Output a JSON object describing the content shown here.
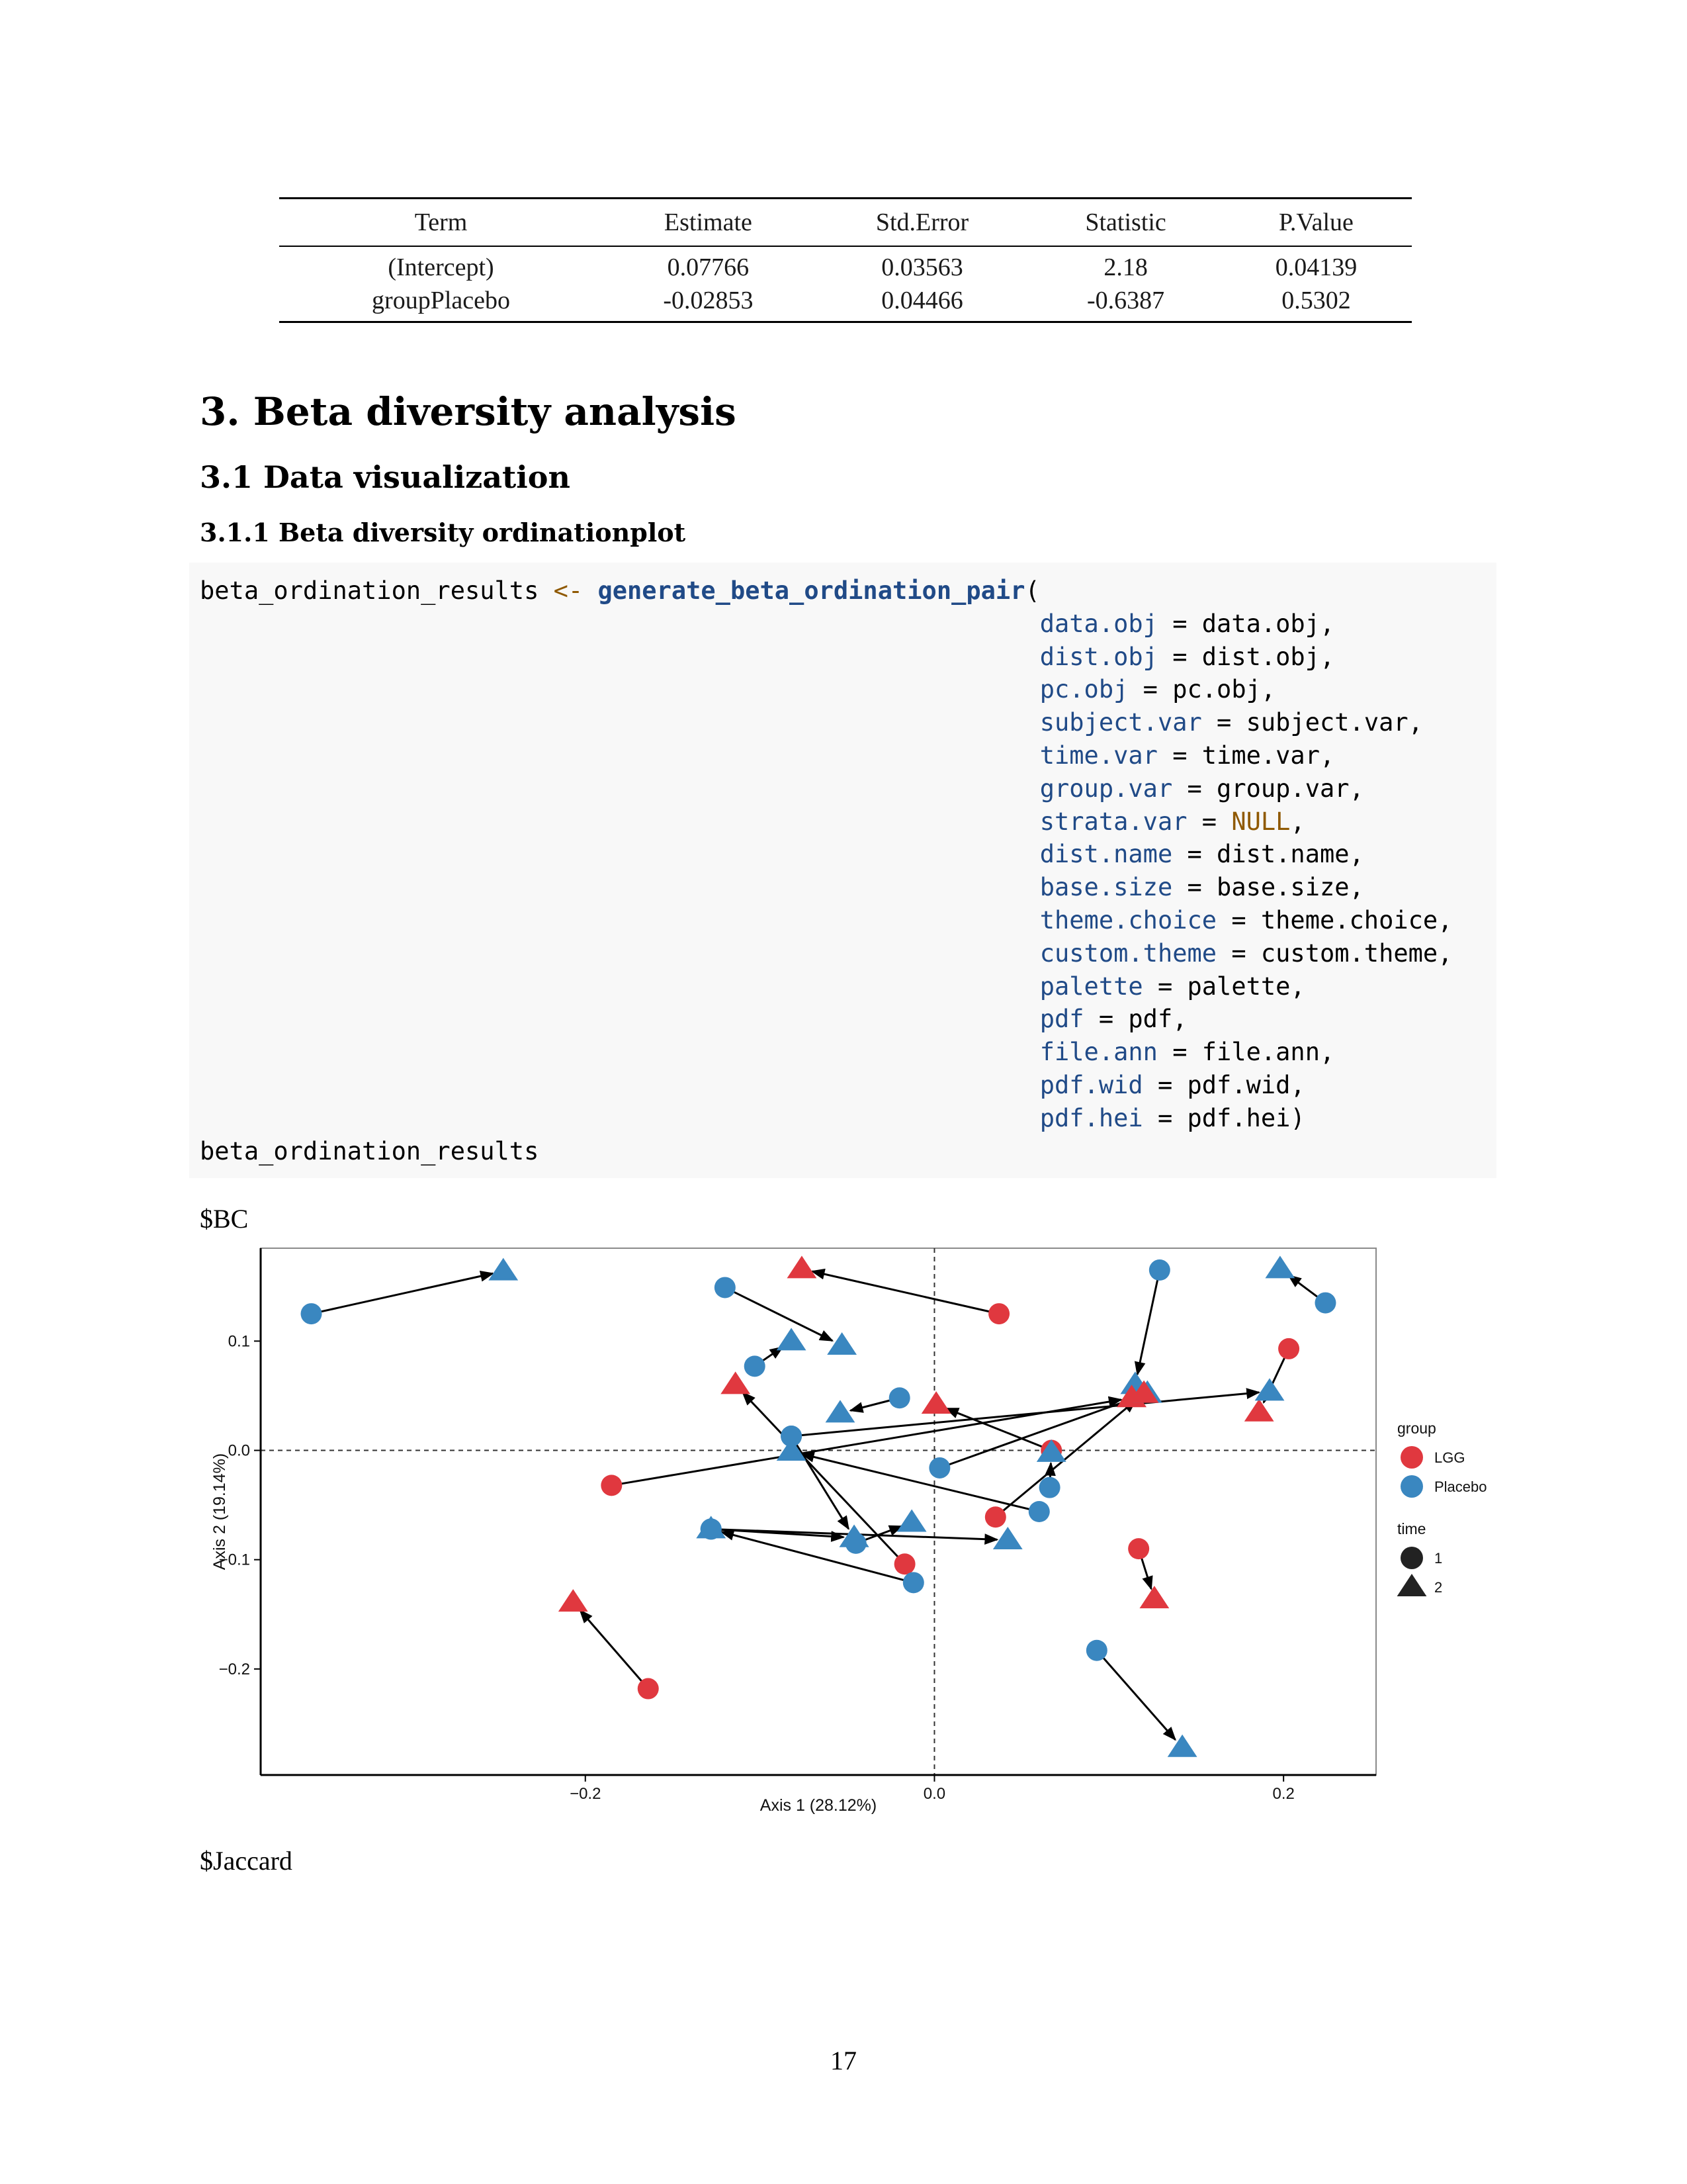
{
  "table": {
    "headers": [
      "Term",
      "Estimate",
      "Std.Error",
      "Statistic",
      "P.Value"
    ],
    "rows": [
      [
        "(Intercept)",
        "0.07766",
        "0.03563",
        "2.18",
        "0.04139"
      ],
      [
        "groupPlacebo",
        "-0.02853",
        "0.04466",
        "-0.6387",
        "0.5302"
      ]
    ]
  },
  "headings": {
    "section": "3.  Beta diversity analysis",
    "subsection": "3.1 Data visualization",
    "subsubsection": "3.1.1 Beta diversity ordinationplot"
  },
  "code": {
    "assign_target": "beta_ordination_results",
    "assign_op": "<-",
    "function": "generate_beta_ordination_pair",
    "args": [
      {
        "name": "data.obj",
        "value": "data.obj",
        "keyword": false
      },
      {
        "name": "dist.obj",
        "value": "dist.obj",
        "keyword": false
      },
      {
        "name": "pc.obj",
        "value": "pc.obj",
        "keyword": false
      },
      {
        "name": "subject.var",
        "value": "subject.var",
        "keyword": false
      },
      {
        "name": "time.var",
        "value": "time.var",
        "keyword": false
      },
      {
        "name": "group.var",
        "value": "group.var",
        "keyword": false
      },
      {
        "name": "strata.var",
        "value": "NULL",
        "keyword": true
      },
      {
        "name": "dist.name",
        "value": "dist.name",
        "keyword": false
      },
      {
        "name": "base.size",
        "value": "base.size",
        "keyword": false
      },
      {
        "name": "theme.choice",
        "value": "theme.choice",
        "keyword": false
      },
      {
        "name": "custom.theme",
        "value": "custom.theme",
        "keyword": false
      },
      {
        "name": "palette",
        "value": "palette",
        "keyword": false
      },
      {
        "name": "pdf",
        "value": "pdf",
        "keyword": false
      },
      {
        "name": "file.ann",
        "value": "file.ann",
        "keyword": false
      },
      {
        "name": "pdf.wid",
        "value": "pdf.wid",
        "keyword": false
      },
      {
        "name": "pdf.hei",
        "value": "pdf.hei",
        "keyword": false
      }
    ],
    "final_line": "beta_ordination_results"
  },
  "outputs": {
    "bc_label": "$BC",
    "jaccard_label": "$Jaccard"
  },
  "chart_data": {
    "type": "scatter",
    "xlabel": "Axis 1 (28.12%)",
    "ylabel": "Axis 2 (19.14%)",
    "xlim": [
      -0.386,
      0.253
    ],
    "ylim": [
      -0.297,
      0.185
    ],
    "xticks": [
      -0.2,
      0.0,
      0.2
    ],
    "yticks": [
      -0.2,
      -0.1,
      0.0,
      0.1
    ],
    "xtick_labels": [
      "−0.2",
      "0.0",
      "0.2"
    ],
    "ytick_labels": [
      "−0.2",
      "−0.1",
      "0.0",
      "0.1"
    ],
    "reference_lines": {
      "x": 0.0,
      "y": 0.0,
      "style": "dashed"
    },
    "grid": false,
    "legend_position": "right",
    "legend": {
      "group_title": "group",
      "groups": [
        {
          "name": "LGG",
          "color": "#e0383f"
        },
        {
          "name": "Placebo",
          "color": "#3a87c0"
        }
      ],
      "time_title": "time",
      "times": [
        {
          "name": "1",
          "shape": "circle"
        },
        {
          "name": "2",
          "shape": "triangle"
        }
      ]
    },
    "pairs": [
      {
        "group": "Placebo",
        "t1": [
          -0.357,
          0.125
        ],
        "t2": [
          -0.247,
          0.164
        ]
      },
      {
        "group": "LGG",
        "t1": [
          0.037,
          0.125
        ],
        "t2": [
          -0.076,
          0.166
        ]
      },
      {
        "group": "Placebo",
        "t1": [
          -0.12,
          0.149
        ],
        "t2": [
          -0.053,
          0.096
        ]
      },
      {
        "group": "Placebo",
        "t1": [
          0.129,
          0.165
        ],
        "t2": [
          0.115,
          0.06
        ]
      },
      {
        "group": "Placebo",
        "t1": [
          0.224,
          0.135
        ],
        "t2": [
          0.198,
          0.166
        ]
      },
      {
        "group": "LGG",
        "t1": [
          0.203,
          0.093
        ],
        "t2": [
          0.186,
          0.035
        ]
      },
      {
        "group": "Placebo",
        "t1": [
          -0.103,
          0.077
        ],
        "t2": [
          -0.082,
          0.1
        ]
      },
      {
        "group": "Placebo",
        "t1": [
          -0.02,
          0.048
        ],
        "t2": [
          -0.054,
          0.034
        ]
      },
      {
        "group": "LGG",
        "t1": [
          -0.185,
          -0.032
        ],
        "t2": [
          0.113,
          0.048
        ]
      },
      {
        "group": "Placebo",
        "t1": [
          0.06,
          -0.056
        ],
        "t2": [
          -0.082,
          -0.001
        ]
      },
      {
        "group": "Placebo",
        "t1": [
          -0.082,
          0.013
        ],
        "t2": [
          0.192,
          0.054
        ]
      },
      {
        "group": "Placebo",
        "t1": [
          -0.082,
          0.013
        ],
        "t2": [
          -0.046,
          -0.08
        ]
      },
      {
        "group": "LGG",
        "t1": [
          -0.017,
          -0.104
        ],
        "t2": [
          -0.114,
          0.06
        ]
      },
      {
        "group": "LGG",
        "t1": [
          0.067,
          0.0
        ],
        "t2": [
          0.001,
          0.042
        ]
      },
      {
        "group": "Placebo",
        "t1": [
          0.003,
          -0.016
        ],
        "t2": [
          0.122,
          0.052
        ]
      },
      {
        "group": "LGG",
        "t1": [
          0.035,
          -0.061
        ],
        "t2": [
          0.12,
          0.052
        ]
      },
      {
        "group": "Placebo",
        "t1": [
          0.066,
          -0.034
        ],
        "t2": [
          0.067,
          -0.002
        ]
      },
      {
        "group": "Placebo",
        "t1": [
          -0.012,
          -0.121
        ],
        "t2": [
          -0.128,
          -0.072
        ]
      },
      {
        "group": "Placebo",
        "t1": [
          -0.045,
          -0.085
        ],
        "t2": [
          -0.013,
          -0.066
        ]
      },
      {
        "group": "Placebo",
        "t1": [
          -0.128,
          -0.072
        ],
        "t2": [
          0.042,
          -0.082
        ]
      },
      {
        "group": "Placebo",
        "t1": [
          -0.128,
          -0.072
        ],
        "t2": [
          -0.046,
          -0.08
        ]
      },
      {
        "group": "LGG",
        "t1": [
          -0.164,
          -0.218
        ],
        "t2": [
          -0.207,
          -0.139
        ]
      },
      {
        "group": "LGG",
        "t1": [
          0.117,
          -0.09
        ],
        "t2": [
          0.126,
          -0.136
        ]
      },
      {
        "group": "Placebo",
        "t1": [
          0.093,
          -0.183
        ],
        "t2": [
          0.142,
          -0.272
        ]
      }
    ]
  },
  "page_number": "17"
}
